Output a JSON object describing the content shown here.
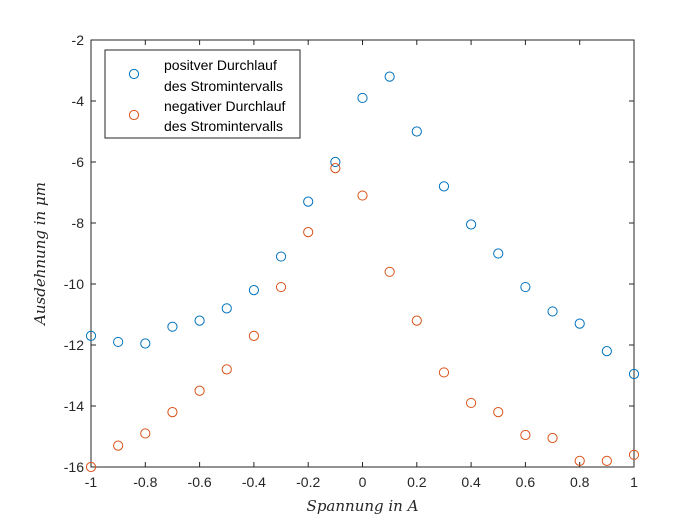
{
  "chart_data": {
    "type": "scatter",
    "title": "",
    "xlabel": "Spannung in A",
    "ylabel": "Ausdehnung in μm",
    "xlim": [
      -1,
      1
    ],
    "ylim": [
      -16,
      -2
    ],
    "xticks": [
      -1,
      -0.8,
      -0.6,
      -0.4,
      -0.2,
      0,
      0.2,
      0.4,
      0.6,
      0.8,
      1
    ],
    "yticks": [
      -16,
      -14,
      -12,
      -10,
      -8,
      -6,
      -4,
      -2
    ],
    "grid": false,
    "legend_position": "top-left",
    "series": [
      {
        "legend_line1": "positver Durchlauf",
        "legend_line2": "des Stromintervalls",
        "color": "#0072BD",
        "marker": "open-circle",
        "x": [
          -1,
          -0.9,
          -0.8,
          -0.7,
          -0.6,
          -0.5,
          -0.4,
          -0.3,
          -0.2,
          -0.1,
          0,
          0.1,
          0.2,
          0.3,
          0.4,
          0.5,
          0.6,
          0.7,
          0.8,
          0.9,
          1
        ],
        "y": [
          -11.7,
          -11.9,
          -11.95,
          -11.4,
          -11.2,
          -10.8,
          -10.2,
          -9.1,
          -7.3,
          -6.0,
          -3.9,
          -3.2,
          -5.0,
          -6.8,
          -8.05,
          -9.0,
          -10.1,
          -10.9,
          -11.3,
          -12.2,
          -12.95
        ]
      },
      {
        "legend_line1": "negativer Durchlauf",
        "legend_line2": "des Stromintervalls",
        "color": "#D95319",
        "marker": "open-circle",
        "x": [
          -1,
          -0.9,
          -0.8,
          -0.7,
          -0.6,
          -0.5,
          -0.4,
          -0.3,
          -0.2,
          -0.1,
          0,
          0.1,
          0.2,
          0.3,
          0.4,
          0.5,
          0.6,
          0.7,
          0.8,
          0.9,
          1
        ],
        "y": [
          -16.0,
          -15.3,
          -14.9,
          -14.2,
          -13.5,
          -12.8,
          -11.7,
          -10.1,
          -8.3,
          -6.2,
          -7.1,
          -9.6,
          -11.2,
          -12.9,
          -13.9,
          -14.2,
          -14.95,
          -15.05,
          -15.8,
          -15.8,
          -15.6
        ]
      }
    ]
  }
}
